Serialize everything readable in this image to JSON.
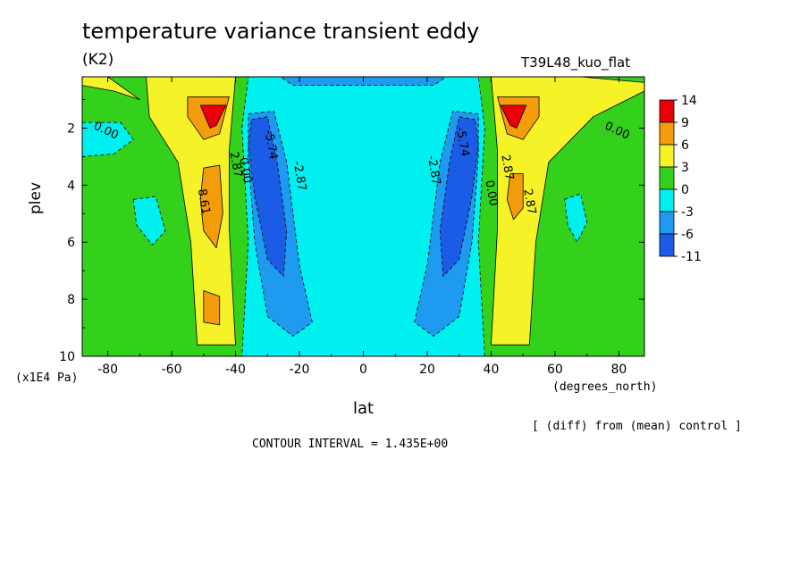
{
  "chart_data": {
    "type": "heatmap",
    "title": "temperature variance transient eddy",
    "units": "(K2)",
    "run_label": "T39L48_kuo_flat",
    "xlabel": "lat",
    "x_units": "(degrees_north)",
    "ylabel": "plev",
    "y_units": "(x1E4 Pa)",
    "diff_note": "[ (diff) from (mean) control ]",
    "contour_interval_text": "CONTOUR INTERVAL = 1.435E+00",
    "xlim": [
      -88,
      88
    ],
    "ylim": [
      10,
      0.2
    ],
    "x_ticks": [
      -80,
      -60,
      -40,
      -20,
      0,
      20,
      40,
      60,
      80
    ],
    "x_tick_labels": [
      "-80",
      "-60",
      "-40",
      "-20",
      "0",
      "20",
      "40",
      "60",
      "80"
    ],
    "y_ticks": [
      2,
      4,
      6,
      8,
      10
    ],
    "y_tick_labels": [
      "2",
      "4",
      "6",
      "8",
      "10"
    ],
    "colorbar": {
      "labels": [
        "14",
        "9",
        "6",
        "3",
        "0",
        "-3",
        "-6",
        "-11"
      ],
      "colors": [
        "#e8000b",
        "#f39c0c",
        "#f5f228",
        "#33d11b",
        "#00f0f0",
        "#1e9bf0",
        "#1a5ce6"
      ]
    },
    "contour_labels": [
      {
        "text": "0.00",
        "x": -81,
        "y": 2.2
      },
      {
        "text": "0.00",
        "x": 79,
        "y": 2.2
      },
      {
        "text": "-5.74",
        "x": -30,
        "y": 2.6
      },
      {
        "text": "-5.74",
        "x": 30,
        "y": 2.5
      },
      {
        "text": "-2.87",
        "x": -21,
        "y": 3.7
      },
      {
        "text": "-2.87",
        "x": 21,
        "y": 3.5
      },
      {
        "text": "2.87",
        "x": -41,
        "y": 3.3
      },
      {
        "text": "0.00",
        "x": -38,
        "y": 3.5
      },
      {
        "text": "8.61",
        "x": -51,
        "y": 4.6
      },
      {
        "text": "2.87",
        "x": 44,
        "y": 3.4
      },
      {
        "text": "0.00",
        "x": 39,
        "y": 4.3
      },
      {
        "text": "2.87",
        "x": 51,
        "y": 4.6
      }
    ],
    "fields": [
      {
        "level": 0,
        "shape": "rect",
        "x": [
          -88,
          88
        ],
        "y": [
          0.2,
          10
        ]
      },
      {
        "level": -1,
        "shape": "poly",
        "points": [
          [
            -36,
            0.2
          ],
          [
            36,
            0.2
          ],
          [
            38,
            2
          ],
          [
            36,
            6
          ],
          [
            38,
            10
          ],
          [
            -38,
            10
          ],
          [
            -36,
            6
          ],
          [
            -38,
            2
          ]
        ]
      },
      {
        "level": -1,
        "shape": "poly",
        "points": [
          [
            -88,
            1.8
          ],
          [
            -76,
            1.8
          ],
          [
            -72,
            2.4
          ],
          [
            -78,
            2.9
          ],
          [
            -88,
            3.0
          ]
        ]
      },
      {
        "level": -1,
        "shape": "poly",
        "points": [
          [
            -72,
            4.5
          ],
          [
            -65,
            4.4
          ],
          [
            -62,
            5.6
          ],
          [
            -66,
            6.1
          ],
          [
            -71,
            5.4
          ]
        ]
      },
      {
        "level": -1,
        "shape": "poly",
        "points": [
          [
            63,
            4.5
          ],
          [
            68,
            4.3
          ],
          [
            70,
            5.3
          ],
          [
            67,
            6.0
          ],
          [
            64,
            5.4
          ]
        ]
      },
      {
        "level": -2,
        "shape": "poly",
        "points": [
          [
            -36,
            1.5
          ],
          [
            -28,
            1.4
          ],
          [
            -24,
            3.2
          ],
          [
            -20,
            6.8
          ],
          [
            -16,
            8.8
          ],
          [
            -22,
            9.3
          ],
          [
            -30,
            8.6
          ],
          [
            -34,
            6
          ],
          [
            -36,
            3
          ]
        ]
      },
      {
        "level": -2,
        "shape": "poly",
        "points": [
          [
            36,
            1.5
          ],
          [
            28,
            1.4
          ],
          [
            24,
            3.2
          ],
          [
            20,
            6.8
          ],
          [
            16,
            8.8
          ],
          [
            22,
            9.3
          ],
          [
            30,
            8.6
          ],
          [
            34,
            6
          ],
          [
            36,
            3
          ]
        ]
      },
      {
        "level": -2,
        "shape": "poly",
        "points": [
          [
            -26,
            0.2
          ],
          [
            26,
            0.2
          ],
          [
            22,
            0.5
          ],
          [
            -22,
            0.5
          ]
        ]
      },
      {
        "level": -3,
        "shape": "poly",
        "points": [
          [
            -35,
            1.7
          ],
          [
            -30,
            1.6
          ],
          [
            -27,
            3.2
          ],
          [
            -24,
            5.6
          ],
          [
            -25,
            7.2
          ],
          [
            -30,
            6.6
          ],
          [
            -34,
            4.4
          ],
          [
            -36,
            2.6
          ]
        ]
      },
      {
        "level": -3,
        "shape": "poly",
        "points": [
          [
            35,
            1.7
          ],
          [
            30,
            1.6
          ],
          [
            27,
            3.2
          ],
          [
            24,
            5.6
          ],
          [
            25,
            7.2
          ],
          [
            30,
            6.6
          ],
          [
            34,
            4.4
          ],
          [
            36,
            2.6
          ]
        ]
      },
      {
        "level": 1,
        "shape": "poly",
        "points": [
          [
            -68,
            0.2
          ],
          [
            -40,
            0.2
          ],
          [
            -42,
            2.8
          ],
          [
            -42,
            5.5
          ],
          [
            -40,
            9.6
          ],
          [
            -52,
            9.6
          ],
          [
            -54,
            6
          ],
          [
            -58,
            3.2
          ],
          [
            -67,
            1.6
          ]
        ]
      },
      {
        "level": 1,
        "shape": "poly",
        "points": [
          [
            -88,
            0.2
          ],
          [
            -80,
            0.2
          ],
          [
            -70,
            1.0
          ],
          [
            -78,
            0.7
          ],
          [
            -88,
            0.5
          ]
        ]
      },
      {
        "level": 1,
        "shape": "poly",
        "points": [
          [
            68,
            0.2
          ],
          [
            40,
            0.2
          ],
          [
            42,
            2.8
          ],
          [
            42,
            5.5
          ],
          [
            40,
            9.6
          ],
          [
            52,
            9.6
          ],
          [
            54,
            6
          ],
          [
            58,
            3.2
          ],
          [
            72,
            1.6
          ],
          [
            88,
            0.7
          ],
          [
            88,
            0.4
          ]
        ]
      },
      {
        "level": 2,
        "shape": "poly",
        "points": [
          [
            -55,
            0.9
          ],
          [
            -42,
            0.9
          ],
          [
            -45,
            2.2
          ],
          [
            -50,
            2.4
          ],
          [
            -55,
            1.6
          ]
        ]
      },
      {
        "level": 2,
        "shape": "poly",
        "points": [
          [
            -50,
            3.4
          ],
          [
            -45,
            3.3
          ],
          [
            -44,
            5.0
          ],
          [
            -46,
            6.2
          ],
          [
            -50,
            5.6
          ],
          [
            -51,
            4.5
          ]
        ]
      },
      {
        "level": 2,
        "shape": "poly",
        "points": [
          [
            -50,
            7.7
          ],
          [
            -45,
            7.9
          ],
          [
            -45,
            8.9
          ],
          [
            -50,
            8.8
          ]
        ]
      },
      {
        "level": 2,
        "shape": "poly",
        "points": [
          [
            55,
            0.9
          ],
          [
            42,
            0.9
          ],
          [
            45,
            2.2
          ],
          [
            50,
            2.4
          ],
          [
            55,
            1.6
          ]
        ]
      },
      {
        "level": 2,
        "shape": "poly",
        "points": [
          [
            50,
            3.6
          ],
          [
            46,
            3.6
          ],
          [
            45,
            4.5
          ],
          [
            47,
            5.2
          ],
          [
            50,
            4.8
          ]
        ]
      },
      {
        "level": 3,
        "shape": "poly",
        "points": [
          [
            -51,
            1.2
          ],
          [
            -43,
            1.2
          ],
          [
            -46,
            1.9
          ],
          [
            -48,
            2.0
          ]
        ]
      },
      {
        "level": 3,
        "shape": "poly",
        "points": [
          [
            51,
            1.2
          ],
          [
            43,
            1.2
          ],
          [
            46,
            1.9
          ],
          [
            48,
            2.0
          ]
        ]
      }
    ]
  }
}
